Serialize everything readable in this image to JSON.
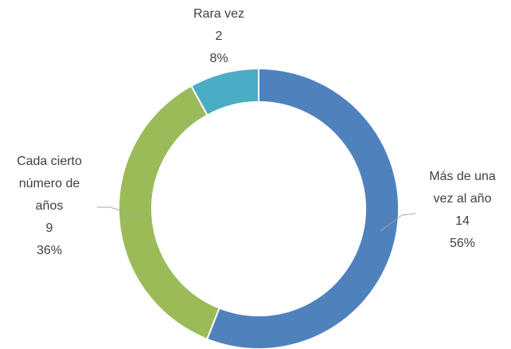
{
  "chart_data": {
    "type": "donut",
    "categories": [
      "Más de una vez al año",
      "Cada cierto número de años",
      "Rara vez"
    ],
    "values": [
      14,
      9,
      2
    ],
    "percent_labels": [
      "56%",
      "36%",
      "8%"
    ],
    "colors": [
      "#4f81bd",
      "#9bbb59",
      "#4bacc6"
    ]
  }
}
